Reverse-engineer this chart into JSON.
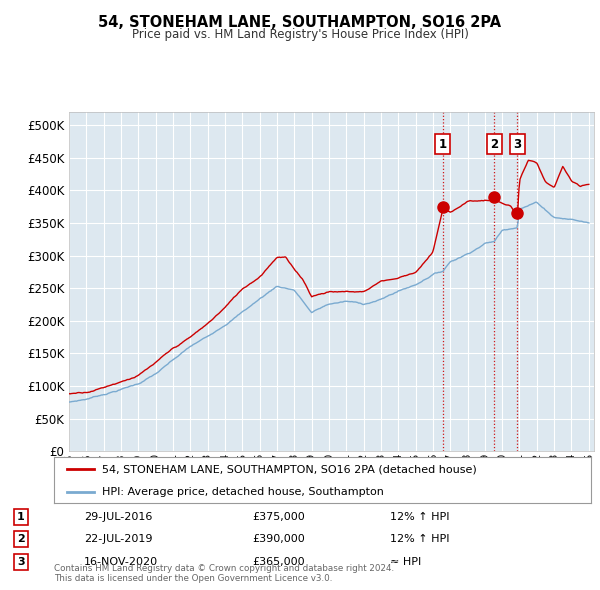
{
  "title": "54, STONEHAM LANE, SOUTHAMPTON, SO16 2PA",
  "subtitle": "Price paid vs. HM Land Registry's House Price Index (HPI)",
  "ytick_values": [
    0,
    50000,
    100000,
    150000,
    200000,
    250000,
    300000,
    350000,
    400000,
    450000,
    500000
  ],
  "ylim": [
    0,
    520000
  ],
  "xlim_start": 1995.0,
  "xlim_end": 2025.3,
  "background_color": "#ffffff",
  "plot_bg_color": "#dde8f0",
  "grid_color": "#ffffff",
  "hpi_line_color": "#7aaad0",
  "price_line_color": "#cc0000",
  "vline_color": "#cc0000",
  "transactions": [
    {
      "id": 1,
      "date_label": "29-JUL-2016",
      "x": 2016.57,
      "price": 375000,
      "label": "£375,000",
      "note": "12% ↑ HPI"
    },
    {
      "id": 2,
      "date_label": "22-JUL-2019",
      "x": 2019.55,
      "price": 390000,
      "label": "£390,000",
      "note": "12% ↑ HPI"
    },
    {
      "id": 3,
      "date_label": "16-NOV-2020",
      "x": 2020.88,
      "price": 365000,
      "label": "£365,000",
      "note": "≈ HPI"
    }
  ],
  "legend_price_label": "54, STONEHAM LANE, SOUTHAMPTON, SO16 2PA (detached house)",
  "legend_hpi_label": "HPI: Average price, detached house, Southampton",
  "footer_line1": "Contains HM Land Registry data © Crown copyright and database right 2024.",
  "footer_line2": "This data is licensed under the Open Government Licence v3.0.",
  "hpi_waypoints_x": [
    1995,
    1996,
    1997,
    1998,
    1999,
    2000,
    2001,
    2002,
    2003,
    2004,
    2005,
    2006,
    2007,
    2008,
    2009,
    2010,
    2011,
    2012,
    2013,
    2014,
    2015,
    2016,
    2016.57,
    2017,
    2018,
    2019,
    2019.55,
    2020,
    2020.88,
    2021,
    2022,
    2023,
    2024,
    2025
  ],
  "hpi_waypoints_y": [
    75000,
    80000,
    88000,
    96000,
    105000,
    120000,
    140000,
    160000,
    175000,
    195000,
    215000,
    235000,
    255000,
    250000,
    215000,
    228000,
    232000,
    228000,
    235000,
    248000,
    258000,
    275000,
    280000,
    295000,
    308000,
    325000,
    328000,
    345000,
    352000,
    380000,
    390000,
    368000,
    365000,
    360000
  ],
  "price_waypoints_x": [
    1995,
    1996,
    1997,
    1998,
    1999,
    2000,
    2001,
    2002,
    2003,
    2004,
    2005,
    2006,
    2007,
    2007.5,
    2008,
    2008.5,
    2009,
    2010,
    2011,
    2012,
    2013,
    2014,
    2015,
    2016,
    2016.57,
    2017,
    2018,
    2019,
    2019.55,
    2020,
    2020.5,
    2020.88,
    2021,
    2021.5,
    2022,
    2022.5,
    2023,
    2023.5,
    2024,
    2024.5,
    2025
  ],
  "price_waypoints_y": [
    88000,
    92000,
    100000,
    110000,
    120000,
    138000,
    158000,
    175000,
    195000,
    220000,
    248000,
    268000,
    300000,
    300000,
    280000,
    265000,
    240000,
    248000,
    248000,
    248000,
    265000,
    270000,
    280000,
    310000,
    375000,
    370000,
    388000,
    390000,
    390000,
    385000,
    380000,
    365000,
    420000,
    450000,
    445000,
    415000,
    405000,
    438000,
    415000,
    405000,
    408000
  ]
}
